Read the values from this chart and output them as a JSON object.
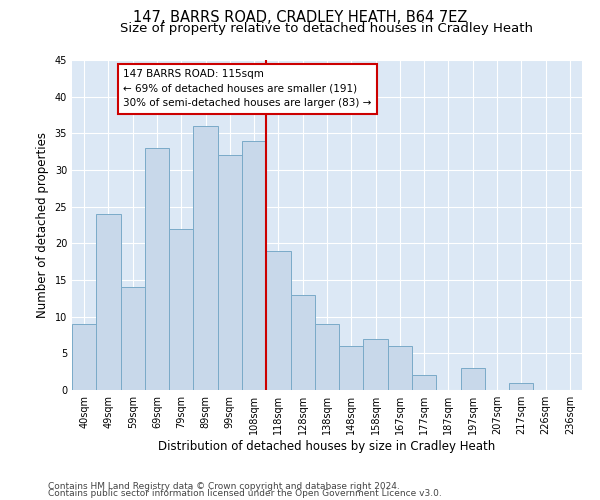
{
  "title": "147, BARRS ROAD, CRADLEY HEATH, B64 7EZ",
  "subtitle": "Size of property relative to detached houses in Cradley Heath",
  "xlabel": "Distribution of detached houses by size in Cradley Heath",
  "ylabel": "Number of detached properties",
  "categories": [
    "40sqm",
    "49sqm",
    "59sqm",
    "69sqm",
    "79sqm",
    "89sqm",
    "99sqm",
    "108sqm",
    "118sqm",
    "128sqm",
    "138sqm",
    "148sqm",
    "158sqm",
    "167sqm",
    "177sqm",
    "187sqm",
    "197sqm",
    "207sqm",
    "217sqm",
    "226sqm",
    "236sqm"
  ],
  "values": [
    9,
    24,
    14,
    33,
    22,
    36,
    32,
    34,
    19,
    13,
    9,
    6,
    7,
    6,
    2,
    0,
    3,
    0,
    1,
    0,
    0
  ],
  "bar_color": "#c8d8ea",
  "bar_edge_color": "#7aaac8",
  "vline_x": 7.5,
  "vline_color": "#cc0000",
  "ylim": [
    0,
    45
  ],
  "yticks": [
    0,
    5,
    10,
    15,
    20,
    25,
    30,
    35,
    40,
    45
  ],
  "annotation_text": "147 BARRS ROAD: 115sqm\n← 69% of detached houses are smaller (191)\n30% of semi-detached houses are larger (83) →",
  "annotation_box_color": "#ffffff",
  "annotation_box_edge": "#cc0000",
  "footer1": "Contains HM Land Registry data © Crown copyright and database right 2024.",
  "footer2": "Contains public sector information licensed under the Open Government Licence v3.0.",
  "fig_background_color": "#ffffff",
  "plot_bg_color": "#dce8f5",
  "grid_color": "#ffffff",
  "title_fontsize": 10.5,
  "subtitle_fontsize": 9.5,
  "axis_label_fontsize": 8.5,
  "tick_fontsize": 7,
  "footer_fontsize": 6.5,
  "annotation_fontsize": 7.5
}
